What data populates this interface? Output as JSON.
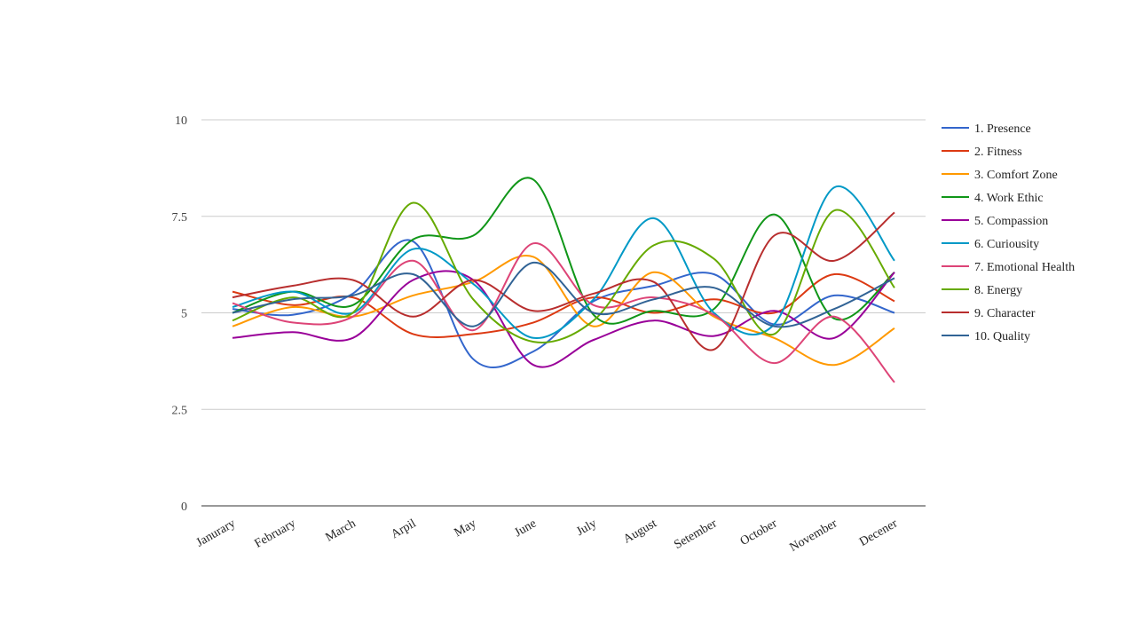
{
  "chart_data": {
    "type": "line",
    "categories": [
      "Janurary",
      "February",
      "March",
      "Arpil",
      "May",
      "June",
      "July",
      "August",
      "Setember",
      "October",
      "November",
      "Decener"
    ],
    "y_ticks": [
      "0",
      "2.5",
      "5",
      "7.5",
      "10"
    ],
    "ylim": [
      0,
      10
    ],
    "legend_position": "right",
    "grid": true,
    "series": [
      {
        "name": "1. Presence",
        "color": "#3366cc",
        "values": [
          5.1,
          4.95,
          5.5,
          6.85,
          3.8,
          4.0,
          5.3,
          5.7,
          6.0,
          4.7,
          5.45,
          5.0
        ]
      },
      {
        "name": "2. Fitness",
        "color": "#dc3912",
        "values": [
          5.55,
          5.2,
          5.4,
          4.45,
          4.45,
          4.75,
          5.4,
          5.0,
          5.35,
          5.0,
          6.0,
          5.3
        ]
      },
      {
        "name": "3. Comfort Zone",
        "color": "#ff9900",
        "values": [
          4.65,
          5.15,
          4.9,
          5.45,
          5.8,
          6.45,
          4.65,
          6.05,
          4.9,
          4.35,
          3.65,
          4.6
        ]
      },
      {
        "name": "4. Work Ethic",
        "color": "#109618",
        "values": [
          5.0,
          5.55,
          5.2,
          6.9,
          7.0,
          8.45,
          4.95,
          5.05,
          5.1,
          7.55,
          4.85,
          6.05
        ]
      },
      {
        "name": "5. Compassion",
        "color": "#990099",
        "values": [
          4.35,
          4.5,
          4.35,
          5.85,
          5.85,
          3.65,
          4.3,
          4.8,
          4.4,
          5.05,
          4.35,
          6.05
        ]
      },
      {
        "name": "6. Curiousity",
        "color": "#0099c6",
        "values": [
          5.15,
          5.55,
          5.0,
          6.65,
          5.75,
          4.35,
          5.35,
          7.45,
          5.0,
          4.7,
          8.25,
          6.35
        ]
      },
      {
        "name": "7. Emotional Health",
        "color": "#dd4477",
        "values": [
          5.25,
          4.75,
          4.9,
          6.35,
          4.55,
          6.8,
          5.2,
          5.4,
          4.95,
          3.7,
          4.9,
          3.2
        ]
      },
      {
        "name": "8. Energy",
        "color": "#66aa00",
        "values": [
          4.8,
          5.4,
          5.0,
          7.85,
          5.35,
          4.25,
          4.8,
          6.75,
          6.4,
          4.45,
          7.65,
          5.65
        ]
      },
      {
        "name": "9. Character",
        "color": "#b82e2e",
        "values": [
          5.4,
          5.7,
          5.85,
          4.9,
          5.85,
          5.05,
          5.5,
          5.8,
          4.05,
          7.0,
          6.35,
          7.6
        ]
      },
      {
        "name": "10. Quality",
        "color": "#316395",
        "values": [
          5.0,
          5.35,
          5.45,
          6.0,
          4.65,
          6.3,
          5.0,
          5.35,
          5.65,
          4.65,
          5.1,
          5.9
        ]
      }
    ]
  }
}
